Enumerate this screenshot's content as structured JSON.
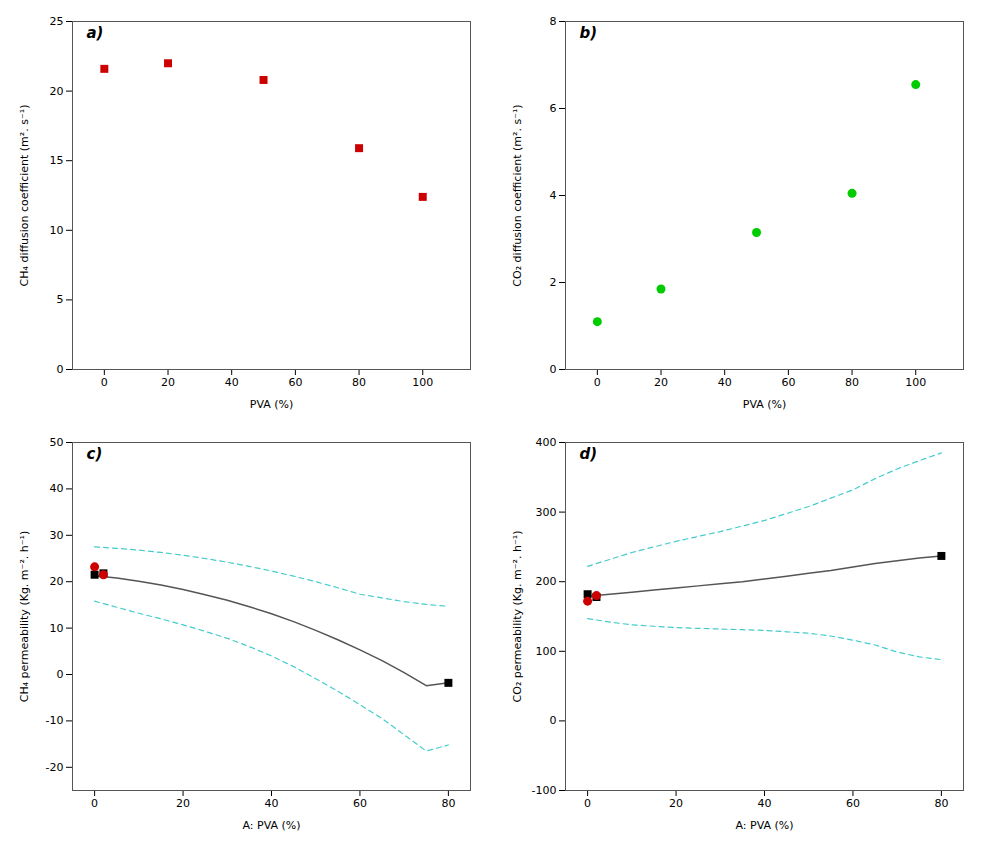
{
  "chart_data": [
    {
      "type": "scatter",
      "annotation": "a)",
      "xlabel": "PVA (%)",
      "ylabel": "CH₄ diffusion coefficient (m². s⁻¹)",
      "x": [
        0,
        20,
        50,
        80,
        100
      ],
      "values": [
        21.6,
        22.0,
        20.8,
        15.9,
        12.4
      ],
      "color": "#cc0000",
      "marker": "square",
      "xlim": [
        -10,
        115
      ],
      "ylim": [
        0,
        25
      ],
      "xticks": [
        0,
        20,
        40,
        60,
        80,
        100
      ],
      "yticks": [
        0,
        5,
        10,
        15,
        20,
        25
      ],
      "grid": false
    },
    {
      "type": "scatter",
      "annotation": "b)",
      "xlabel": "PVA (%)",
      "ylabel": "CO₂ diffusion coefficient (m². s⁻¹)",
      "x": [
        0,
        20,
        50,
        80,
        100
      ],
      "values": [
        1.1,
        1.85,
        3.15,
        4.05,
        6.55
      ],
      "color": "#00cc00",
      "marker": "circle",
      "xlim": [
        -10,
        115
      ],
      "ylim": [
        0,
        8
      ],
      "xticks": [
        0,
        20,
        40,
        60,
        80,
        100
      ],
      "yticks": [
        0,
        2,
        4,
        6,
        8
      ],
      "grid": false
    },
    {
      "type": "line",
      "annotation": "c)",
      "xlabel": "A: PVA (%)",
      "ylabel": "CH₄ permeability (Kg. m⁻². h⁻¹)",
      "series": [
        {
          "type": "line",
          "color": "#44cccc",
          "line_style": "dashed",
          "x": [
            0,
            5,
            10,
            15,
            20,
            25,
            30,
            35,
            40,
            45,
            50,
            55,
            60,
            65,
            70,
            75,
            80
          ],
          "values": [
            27.5,
            27.2,
            26.8,
            26.3,
            25.7,
            25.0,
            24.2,
            23.3,
            22.3,
            21.2,
            20.0,
            18.7,
            17.3,
            16.5,
            15.7,
            15.1,
            14.7
          ]
        },
        {
          "type": "line",
          "color": "#44cccc",
          "line_style": "dashed",
          "x": [
            0,
            5,
            10,
            15,
            20,
            25,
            30,
            35,
            40,
            45,
            50,
            55,
            60,
            65,
            70,
            75,
            80
          ],
          "values": [
            15.8,
            14.5,
            13.2,
            12.0,
            10.7,
            9.3,
            7.8,
            6.0,
            4.0,
            1.7,
            -0.9,
            -3.6,
            -6.5,
            -9.5,
            -13.0,
            -16.5,
            -15.2
          ]
        },
        {
          "type": "line",
          "color": "#555555",
          "line_style": "solid",
          "x": [
            0,
            5,
            10,
            15,
            20,
            25,
            30,
            35,
            40,
            45,
            50,
            55,
            60,
            65,
            70,
            75,
            80
          ],
          "values": [
            21.3,
            20.8,
            20.1,
            19.3,
            18.3,
            17.2,
            16.0,
            14.6,
            13.1,
            11.4,
            9.5,
            7.5,
            5.3,
            3.0,
            0.4,
            -2.4,
            -1.8
          ]
        },
        {
          "type": "scatter",
          "color": "black",
          "marker": "square",
          "x": [
            0,
            2,
            80
          ],
          "values": [
            21.5,
            21.8,
            -1.8
          ]
        },
        {
          "type": "scatter",
          "color": "#cc0000",
          "marker": "circle",
          "x": [
            0,
            2
          ],
          "values": [
            23.2,
            21.5
          ]
        }
      ],
      "xlim": [
        -5,
        85
      ],
      "ylim": [
        -25,
        50
      ],
      "xticks": [
        0,
        20,
        40,
        60,
        80
      ],
      "yticks": [
        -20,
        -10,
        0,
        10,
        20,
        30,
        40,
        50
      ],
      "grid": false
    },
    {
      "type": "line",
      "annotation": "d)",
      "xlabel": "A: PVA (%)",
      "ylabel": "CO₂ permeability (Kg. m⁻². h⁻¹)",
      "series": [
        {
          "type": "line",
          "color": "#44cccc",
          "line_style": "dashed",
          "x": [
            0,
            5,
            10,
            15,
            20,
            25,
            30,
            35,
            40,
            45,
            50,
            55,
            60,
            65,
            70,
            75,
            80
          ],
          "values": [
            222,
            232,
            242,
            250,
            258,
            265,
            272,
            280,
            288,
            298,
            308,
            320,
            332,
            348,
            362,
            374,
            385
          ]
        },
        {
          "type": "line",
          "color": "#44cccc",
          "line_style": "dashed",
          "x": [
            0,
            5,
            10,
            15,
            20,
            25,
            30,
            35,
            40,
            45,
            50,
            55,
            60,
            65,
            70,
            75,
            80
          ],
          "values": [
            147,
            142,
            138,
            136,
            134,
            133,
            132,
            131,
            130,
            128,
            126,
            122,
            116,
            109,
            99,
            92,
            88
          ]
        },
        {
          "type": "line",
          "color": "#555555",
          "line_style": "solid",
          "x": [
            0,
            5,
            10,
            15,
            20,
            25,
            30,
            35,
            40,
            45,
            50,
            55,
            60,
            65,
            70,
            75,
            80
          ],
          "values": [
            179,
            182,
            185,
            188,
            191,
            194,
            197,
            200,
            204,
            208,
            212,
            216,
            221,
            226,
            230,
            234,
            237
          ]
        },
        {
          "type": "scatter",
          "color": "black",
          "marker": "square",
          "x": [
            0,
            2,
            80
          ],
          "values": [
            182,
            178,
            237
          ]
        },
        {
          "type": "scatter",
          "color": "#cc0000",
          "marker": "circle",
          "x": [
            0,
            2
          ],
          "values": [
            172,
            180
          ]
        }
      ],
      "xlim": [
        -5,
        85
      ],
      "ylim": [
        -100,
        400
      ],
      "xticks": [
        0,
        20,
        40,
        60,
        80
      ],
      "yticks": [
        -100,
        0,
        100,
        200,
        300,
        400
      ],
      "grid": false
    }
  ]
}
